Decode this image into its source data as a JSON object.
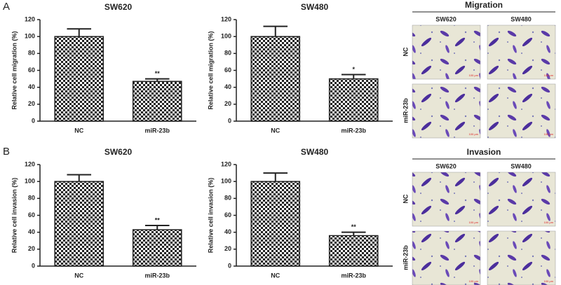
{
  "panel_labels": [
    "A",
    "B"
  ],
  "chart_data": [
    {
      "type": "bar",
      "title": "SW620",
      "ylabel": "Relative cell migration (%)",
      "categories": [
        "NC",
        "miR-23b"
      ],
      "values": [
        100,
        47
      ],
      "errors": [
        9,
        3
      ],
      "annotations": [
        null,
        "**"
      ],
      "ylim": [
        0,
        120
      ],
      "yticks": [
        0,
        20,
        40,
        60,
        80,
        100,
        120
      ],
      "color": "#222222"
    },
    {
      "type": "bar",
      "title": "SW480",
      "ylabel": "Relative cell migration (%)",
      "categories": [
        "NC",
        "miR-23b"
      ],
      "values": [
        100,
        50
      ],
      "errors": [
        12,
        5
      ],
      "annotations": [
        null,
        "*"
      ],
      "ylim": [
        0,
        120
      ],
      "yticks": [
        0,
        20,
        40,
        60,
        80,
        100,
        120
      ],
      "color": "#222222"
    },
    {
      "type": "bar",
      "title": "SW620",
      "ylabel": "Relative cell invasion (%)",
      "categories": [
        "NC",
        "miR-23b"
      ],
      "values": [
        100,
        43
      ],
      "errors": [
        8,
        5
      ],
      "annotations": [
        null,
        "**"
      ],
      "ylim": [
        0,
        120
      ],
      "yticks": [
        0,
        20,
        40,
        60,
        80,
        100,
        120
      ],
      "color": "#222222"
    },
    {
      "type": "bar",
      "title": "SW480",
      "ylabel": "Relative cell invasion (%)",
      "categories": [
        "NC",
        "miR-23b"
      ],
      "values": [
        100,
        36
      ],
      "errors": [
        10,
        4
      ],
      "annotations": [
        null,
        "**"
      ],
      "ylim": [
        0,
        120
      ],
      "yticks": [
        0,
        20,
        40,
        60,
        80,
        100,
        120
      ],
      "color": "#222222"
    }
  ],
  "micrographs": [
    {
      "title": "Migration",
      "columns": [
        "SW620",
        "SW480"
      ],
      "rows": [
        "NC",
        "miR-23b"
      ],
      "scale_label": "100 μm"
    },
    {
      "title": "Invasion",
      "columns": [
        "SW620",
        "SW480"
      ],
      "rows": [
        "NC",
        "miR-23b"
      ],
      "scale_label": "100 μm"
    }
  ]
}
